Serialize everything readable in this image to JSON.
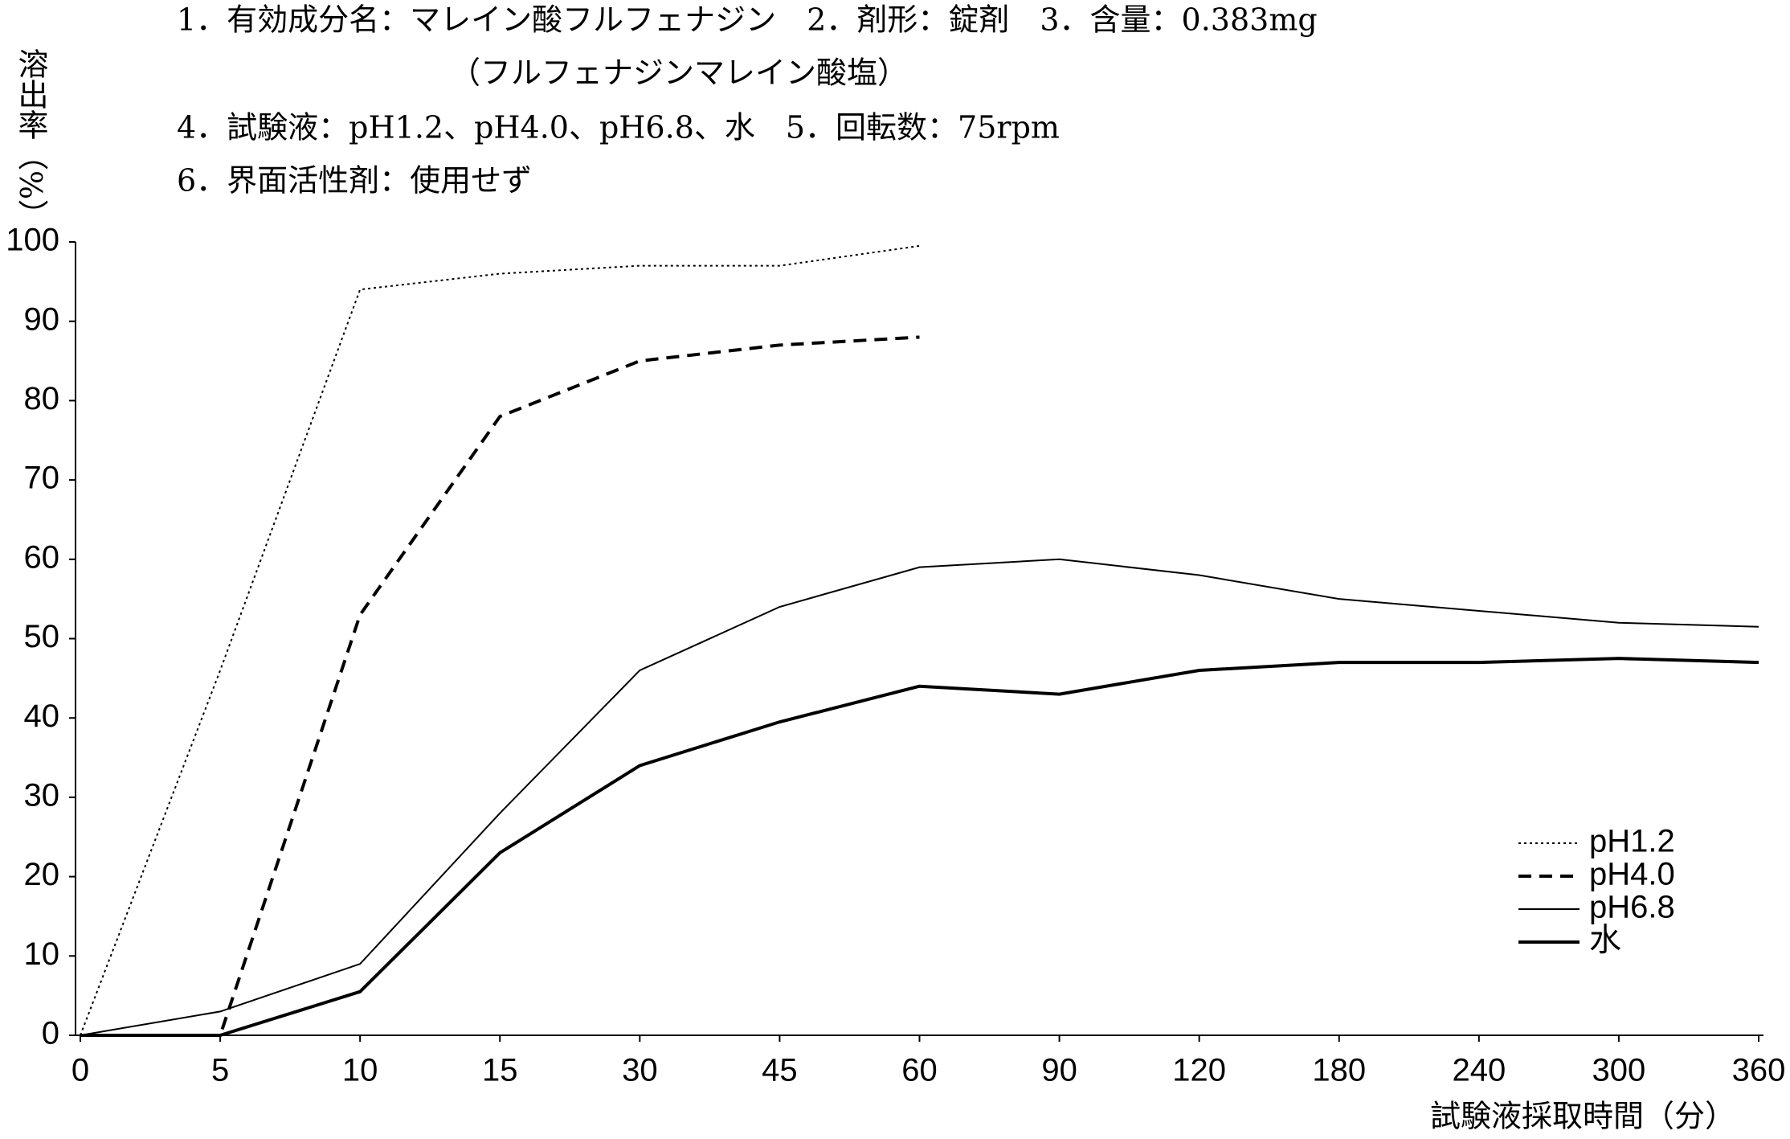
{
  "chart_data": {
    "type": "line",
    "title_lines": [
      "1．有効成分名：マレイン酸フルフェナジン　2．剤形：錠剤　3．含量：0.383mg",
      "（フルフェナジンマレイン酸塩）",
      "4．試験液：pH1.2、pH4.0、pH6.8、水　5．回転数：75rpm",
      "6．界面活性剤：使用せず"
    ],
    "y_label": "溶出率（%）",
    "x_label": "試験液採取時間（分）",
    "categories": [
      "0",
      "5",
      "10",
      "15",
      "30",
      "45",
      "60",
      "90",
      "120",
      "180",
      "240",
      "300",
      "360"
    ],
    "ylim": [
      0,
      100
    ],
    "yticks": [
      0,
      10,
      20,
      30,
      40,
      50,
      60,
      70,
      80,
      90,
      100
    ],
    "legend": "lower right",
    "series": [
      {
        "name": "pH1.2",
        "color": "#000000",
        "line_style": "dotted",
        "values": [
          0,
          46,
          94,
          96,
          97,
          97,
          99.5,
          null,
          null,
          null,
          null,
          null,
          null
        ]
      },
      {
        "name": "pH4.0",
        "color": "#000000",
        "line_style": "dashed",
        "values": [
          0,
          0,
          53,
          78,
          85,
          87,
          88,
          null,
          null,
          null,
          null,
          null,
          null
        ]
      },
      {
        "name": "pH6.8",
        "color": "#000000",
        "line_style": "thin",
        "values": [
          0,
          3,
          9,
          28,
          46,
          54,
          59,
          60,
          58,
          55,
          53.5,
          52,
          51.5
        ]
      },
      {
        "name": "水",
        "color": "#000000",
        "line_style": "thick",
        "values": [
          0,
          0,
          5.5,
          23,
          34,
          39.5,
          44,
          43,
          46,
          47,
          47,
          47.5,
          47
        ]
      }
    ]
  }
}
